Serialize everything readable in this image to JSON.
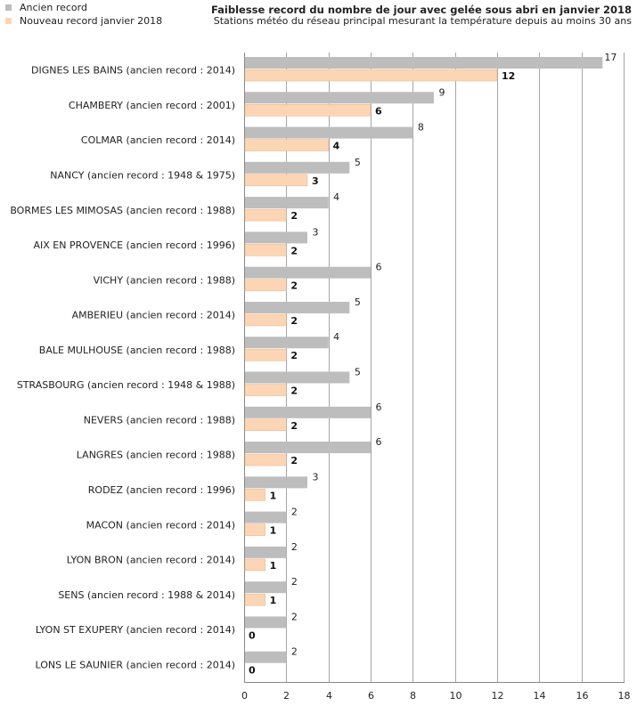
{
  "chart_data": {
    "type": "bar",
    "orientation": "horizontal",
    "title": "Faiblesse record du nombre de jour avec gelée sous abri en janvier 2018",
    "subtitle": "Stations météo du réseau principal mesurant la température depuis au moins 30 ans",
    "categories": [
      "DIGNES LES BAINS (ancien record : 2014)",
      "CHAMBERY (ancien record : 2001)",
      "COLMAR (ancien record : 2014)",
      "NANCY (ancien record : 1948 & 1975)",
      "BORMES LES MIMOSAS (ancien record : 1988)",
      "AIX EN PROVENCE (ancien record : 1996)",
      "VICHY (ancien record : 1988)",
      "AMBERIEU (ancien record : 2014)",
      "BALE MULHOUSE (ancien record : 1988)",
      "STRASBOURG (ancien record : 1948 & 1988)",
      "NEVERS (ancien record : 1988)",
      "LANGRES (ancien record : 1988)",
      "RODEZ (ancien record : 1996)",
      "MACON (ancien record : 2014)",
      "LYON BRON (ancien record : 2014)",
      "SENS (ancien record : 1988 & 2014)",
      "LYON ST EXUPERY (ancien record : 2014)",
      "LONS LE SAUNIER (ancien record : 2014)"
    ],
    "series": [
      {
        "name": "Ancien record",
        "color": "#bdbdbd",
        "values": [
          17,
          9,
          8,
          5,
          4,
          3,
          6,
          5,
          4,
          5,
          6,
          6,
          3,
          2,
          2,
          2,
          2,
          2
        ]
      },
      {
        "name": "Nouveau record janvier 2018",
        "color": "#fcd5b4",
        "values": [
          12,
          6,
          4,
          3,
          2,
          2,
          2,
          2,
          2,
          2,
          2,
          2,
          1,
          1,
          1,
          1,
          0,
          0
        ]
      }
    ],
    "xlim": [
      0,
      18
    ],
    "xticks": [
      "0",
      "2",
      "4",
      "6",
      "8",
      "10",
      "12",
      "14",
      "16",
      "18"
    ],
    "grid": true,
    "legend_position": "top-left"
  }
}
